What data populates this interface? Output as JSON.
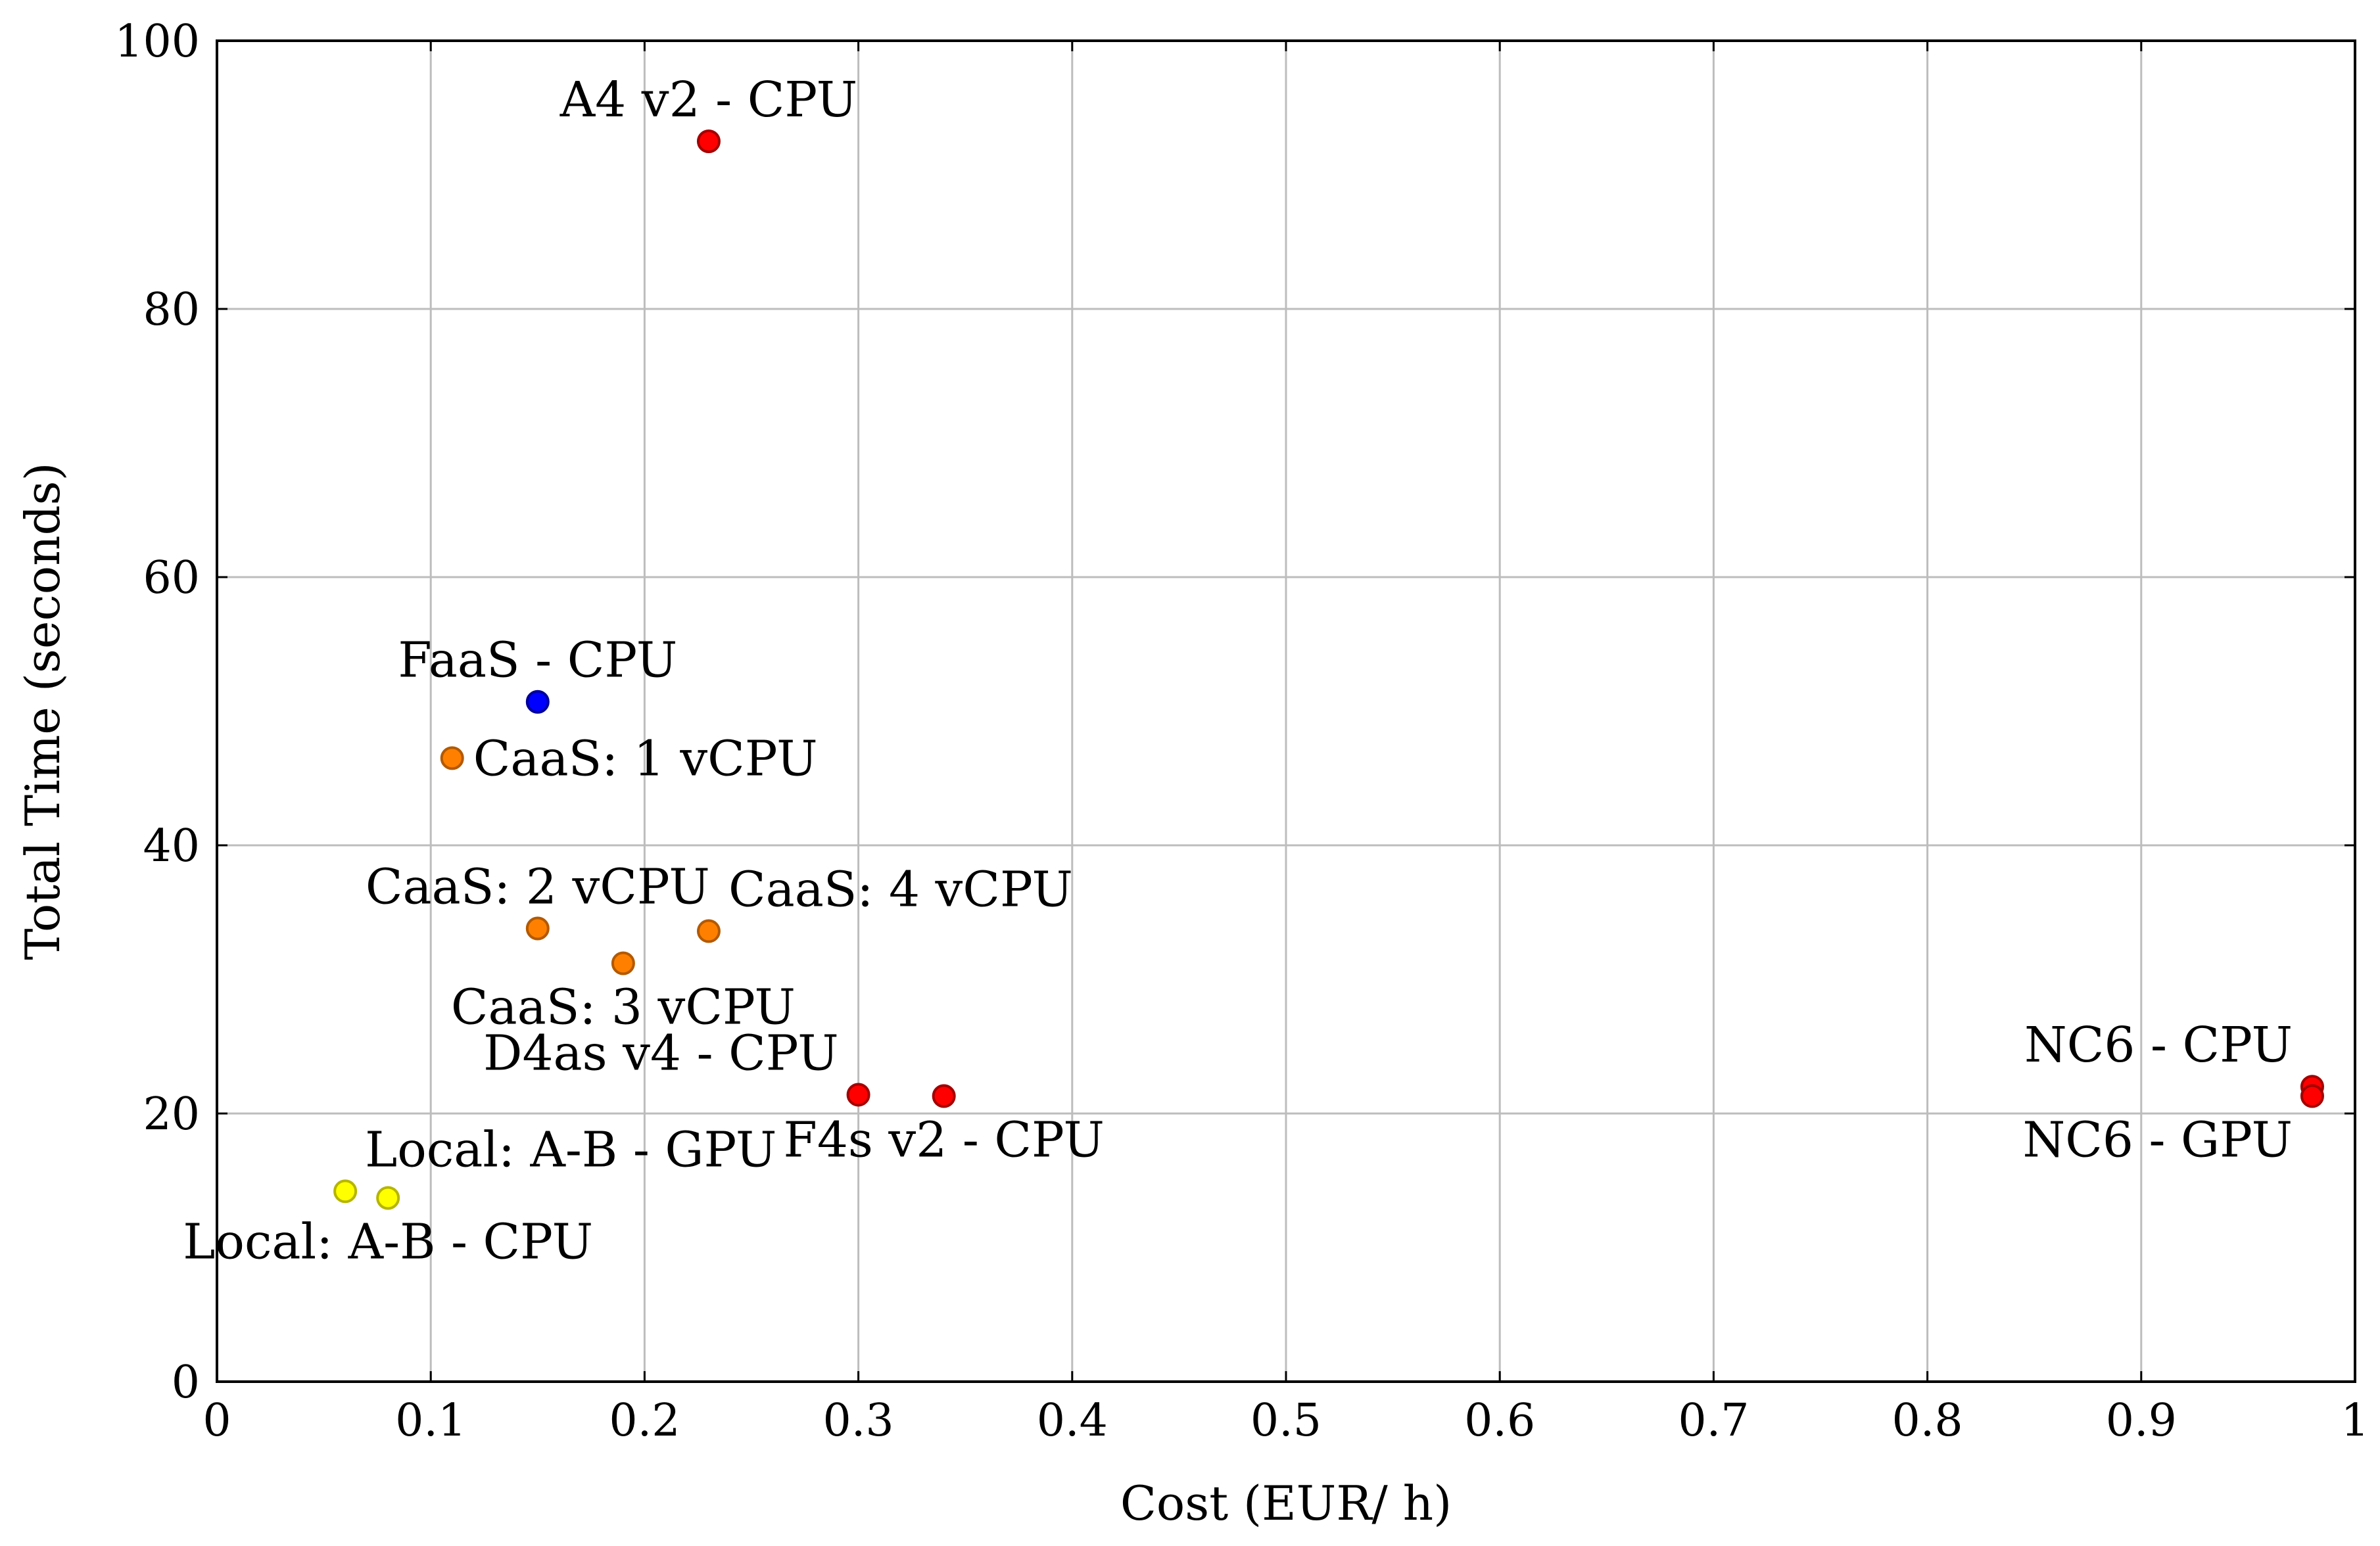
{
  "chart_data": {
    "type": "scatter",
    "title": "",
    "xlabel": "Cost (EUR/ h)",
    "ylabel": "Total Time (seconds)",
    "xlim": [
      0,
      1
    ],
    "ylim": [
      0,
      100
    ],
    "xticks": [
      0,
      0.1,
      0.2,
      0.3,
      0.4,
      0.5,
      0.6,
      0.7,
      0.8,
      0.9,
      1
    ],
    "xtick_labels": [
      "0",
      "0.1",
      "0.2",
      "0.3",
      "0.4",
      "0.5",
      "0.6",
      "0.7",
      "0.8",
      "0.9",
      "1"
    ],
    "yticks": [
      0,
      20,
      40,
      60,
      80,
      100
    ],
    "ytick_labels": [
      "0",
      "20",
      "40",
      "60",
      "80",
      "100"
    ],
    "grid": true,
    "points": [
      {
        "label": "A4 v2 - CPU",
        "x": 0.23,
        "y": 92.5,
        "color": "#ff0000",
        "label_pos": "above"
      },
      {
        "label": "FaaS - CPU",
        "x": 0.15,
        "y": 50.7,
        "color": "#0000ff",
        "label_pos": "above"
      },
      {
        "label": "CaaS: 1 vCPU",
        "x": 0.11,
        "y": 46.5,
        "color": "#ff8000",
        "label_pos": "right"
      },
      {
        "label": "CaaS: 2 vCPU",
        "x": 0.15,
        "y": 33.8,
        "color": "#ff8000",
        "label_pos": "above"
      },
      {
        "label": "CaaS: 4 vCPU",
        "x": 0.23,
        "y": 33.6,
        "color": "#ff8000",
        "label_pos": "above-right"
      },
      {
        "label": "CaaS: 3 vCPU",
        "x": 0.19,
        "y": 31.2,
        "color": "#ff8000",
        "label_pos": "below"
      },
      {
        "label": "D4as v4 - CPU",
        "x": 0.3,
        "y": 21.4,
        "color": "#ff0000",
        "label_pos": "above-left"
      },
      {
        "label": "F4s v2 - CPU",
        "x": 0.34,
        "y": 21.3,
        "color": "#ff0000",
        "label_pos": "below"
      },
      {
        "label": "NC6 - CPU",
        "x": 0.98,
        "y": 22.0,
        "color": "#ff0000",
        "label_pos": "above-left"
      },
      {
        "label": "NC6 - GPU",
        "x": 0.98,
        "y": 21.3,
        "color": "#ff0000",
        "label_pos": "below-left"
      },
      {
        "label": "Local: A-B - GPU",
        "x": 0.06,
        "y": 14.2,
        "color": "#ffff00",
        "label_pos": "above-right"
      },
      {
        "label": "Local: A-B - CPU",
        "x": 0.08,
        "y": 13.7,
        "color": "#ffff00",
        "label_pos": "below"
      }
    ]
  }
}
